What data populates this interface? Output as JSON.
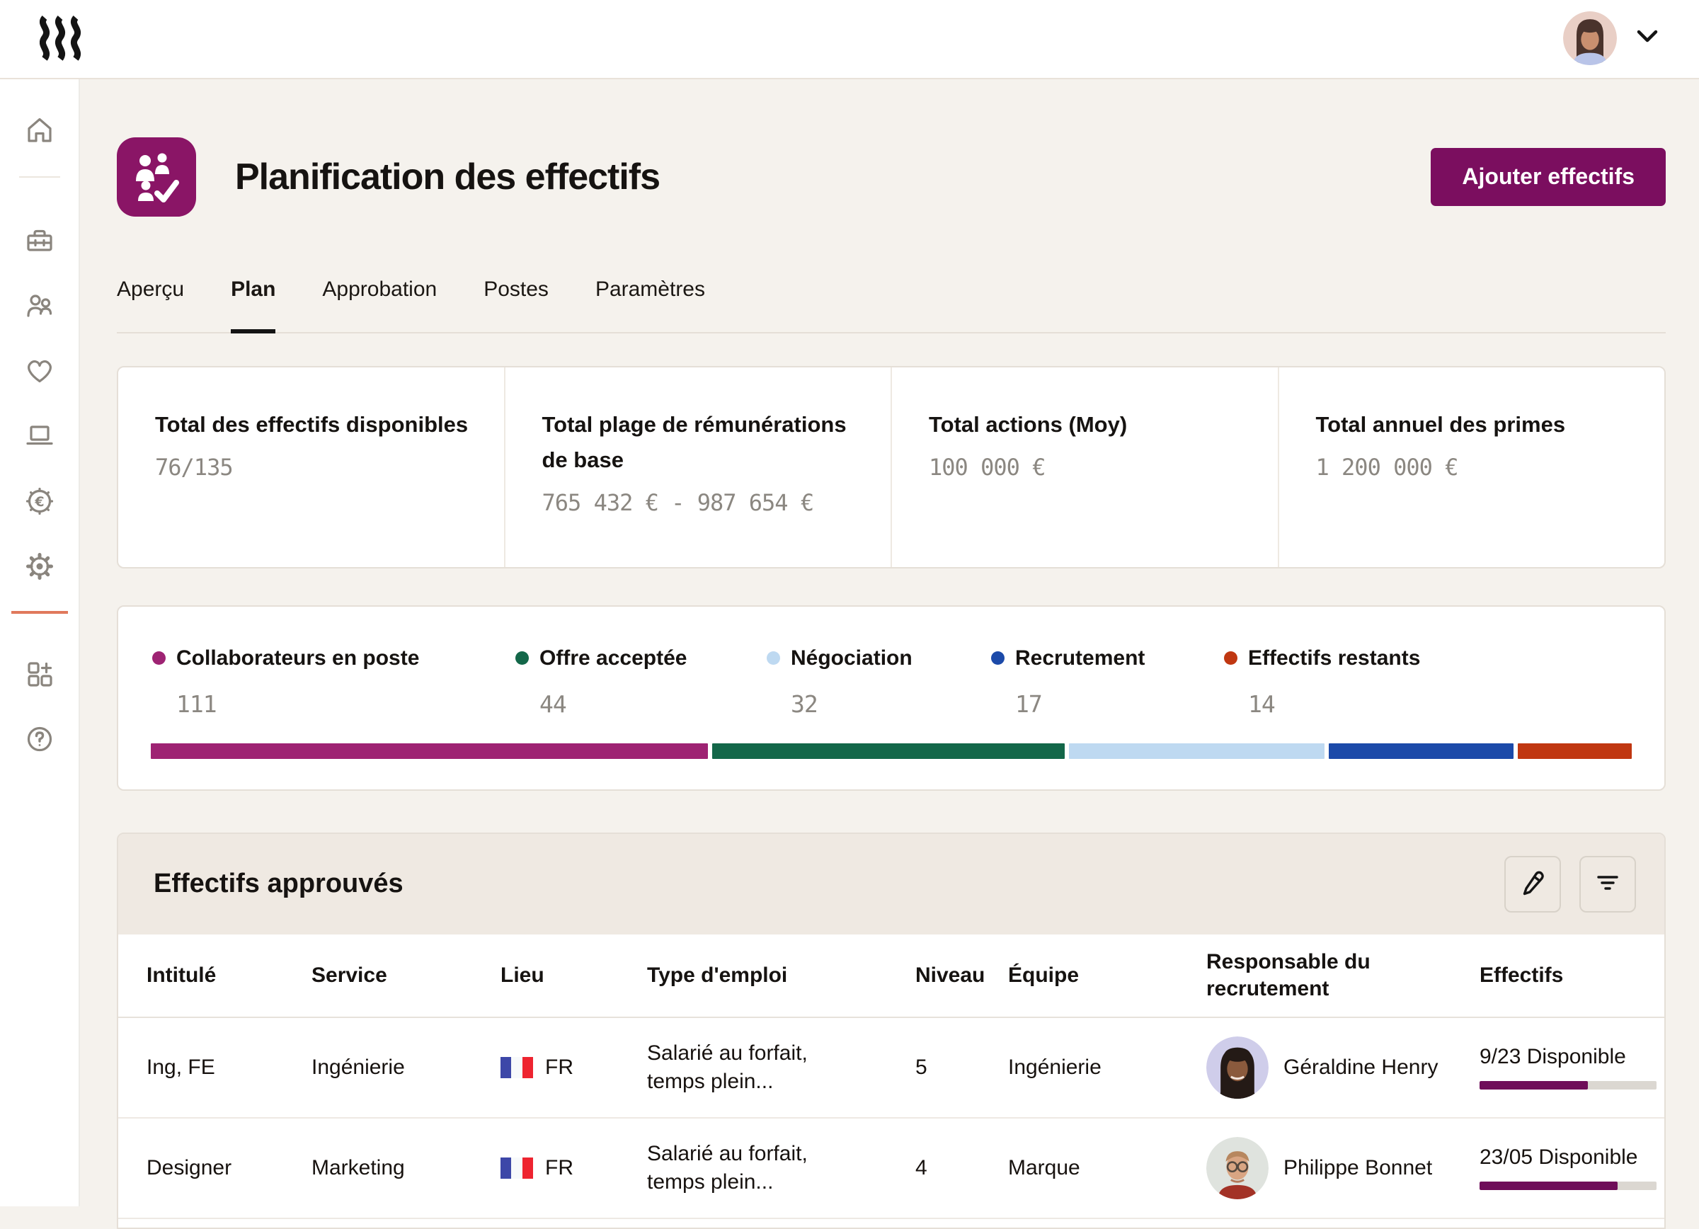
{
  "topbar": {
    "logo": "rippling-logo",
    "user": {
      "avatar": "user-avatar",
      "menu_icon": "chevron-down-icon"
    }
  },
  "sidebar": {
    "items": [
      {
        "id": "home",
        "icon": "home-icon"
      },
      {
        "id": "tools",
        "icon": "toolbox-icon"
      },
      {
        "id": "people",
        "icon": "people-icon"
      },
      {
        "id": "benefits",
        "icon": "heart-icon"
      },
      {
        "id": "devices",
        "icon": "laptop-icon"
      },
      {
        "id": "payroll",
        "icon": "euro-coin-icon"
      },
      {
        "id": "settings",
        "icon": "gear-icon"
      },
      {
        "id": "add-apps",
        "icon": "grid-plus-icon"
      },
      {
        "id": "help",
        "icon": "question-circle-icon"
      }
    ]
  },
  "page": {
    "title": "Planification des effectifs",
    "app_icon": "headcount-planning-icon",
    "add_button_label": "Ajouter effectifs"
  },
  "tabs": [
    {
      "label": "Aperçu",
      "active": false
    },
    {
      "label": "Plan",
      "active": true
    },
    {
      "label": "Approbation",
      "active": false
    },
    {
      "label": "Postes",
      "active": false
    },
    {
      "label": "Paramètres",
      "active": false
    }
  ],
  "stats": [
    {
      "label": "Total des effectifs disponibles",
      "value": "76/135"
    },
    {
      "label": "Total plage de rémunérations de base",
      "value": "765 432 € - 987 654 €"
    },
    {
      "label": "Total actions (Moy)",
      "value": "100 000 €"
    },
    {
      "label": "Total annuel des primes",
      "value": "1 200 000 €"
    }
  ],
  "chart_data": {
    "type": "bar",
    "variant": "stacked-horizontal-single-row",
    "legend_position": "top",
    "segments": [
      {
        "label": "Collaborateurs en poste",
        "value": 111,
        "color": "#9e2373",
        "width_percent": 37.7
      },
      {
        "label": "Offre acceptée",
        "value": 44,
        "color": "#136749",
        "width_percent": 23.9
      },
      {
        "label": "Négociation",
        "value": 32,
        "color": "#bed9f1",
        "width_percent": 17.3
      },
      {
        "label": "Recrutement",
        "value": 17,
        "color": "#1c4aa9",
        "width_percent": 12.5
      },
      {
        "label": "Effectifs restants",
        "value": 14,
        "color": "#c03711",
        "width_percent": 7.7
      }
    ]
  },
  "table": {
    "title": "Effectifs approuvés",
    "tools": {
      "edit_icon": "pencil-icon",
      "filter_icon": "filter-icon"
    },
    "columns": [
      "Intitulé",
      "Service",
      "Lieu",
      "Type d'emploi",
      "Niveau",
      "Équipe",
      "Responsable du recrutement",
      "Effectifs"
    ],
    "rows": [
      {
        "title": "Ing, FE",
        "service": "Ingénierie",
        "location": "FR",
        "location_flag": "france-flag",
        "employment_type": "Salarié au forfait, temps plein...",
        "level": "5",
        "team": "Ingénierie",
        "manager": "Géraldine Henry",
        "headcount": "9/23 Disponible",
        "progress_percent": 61
      },
      {
        "title": "Designer",
        "service": "Marketing",
        "location": "FR",
        "location_flag": "france-flag",
        "employment_type": "Salarié au forfait, temps plein...",
        "level": "4",
        "team": "Marque",
        "manager": "Philippe Bonnet",
        "headcount": "23/05 Disponible",
        "progress_percent": 78
      }
    ]
  },
  "colors": {
    "brand_button": "#7b0e5f",
    "app_tile": "#8a1566",
    "progress_fill": "#6f0d59",
    "page_background": "#f5f2ed",
    "sidebar_accent_divider": "#e0795c",
    "table_header_background": "#efe9e2"
  }
}
